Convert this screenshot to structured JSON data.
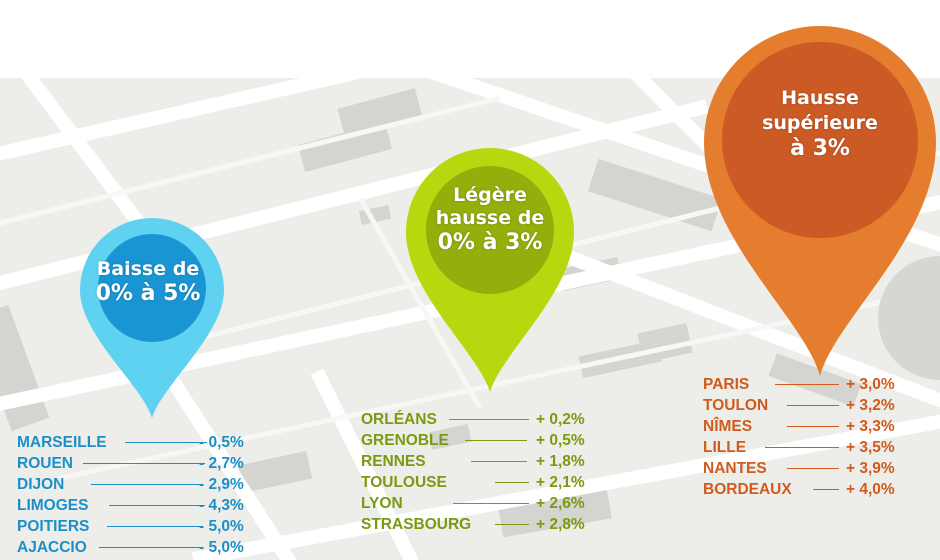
{
  "colors": {
    "blue": "#1d8fc8",
    "blue_pin": "#5fd2f2",
    "blue_core": "#1a95d3",
    "green": "#7a9a12",
    "green_pin": "#b8d70e",
    "green_core": "#94ae0c",
    "orange": "#d15a1c",
    "orange_pin": "#e57d2f",
    "orange_core": "#cc5a24"
  },
  "groups": [
    {
      "title_lines": [
        "Baisse de",
        "0% à 5%"
      ],
      "cities": [
        {
          "name": "MARSEILLE",
          "value": "- 0,5%"
        },
        {
          "name": "ROUEN",
          "value": "- 2,7%"
        },
        {
          "name": "DIJON",
          "value": "- 2,9%"
        },
        {
          "name": "LIMOGES",
          "value": "- 4,3%"
        },
        {
          "name": "POITIERS",
          "value": "- 5,0%"
        },
        {
          "name": "AJACCIO",
          "value": "- 5,0%"
        }
      ]
    },
    {
      "title_lines": [
        "Légère",
        "hausse de",
        "0% à 3%"
      ],
      "cities": [
        {
          "name": "ORLÉANS",
          "value": "+ 0,2%"
        },
        {
          "name": "GRENOBLE",
          "value": "+ 0,5%"
        },
        {
          "name": "RENNES",
          "value": "+ 1,8%"
        },
        {
          "name": "TOULOUSE",
          "value": "+ 2,1%"
        },
        {
          "name": "LYON",
          "value": "+ 2,6%"
        },
        {
          "name": "STRASBOURG",
          "value": "+ 2,8%"
        }
      ]
    },
    {
      "title_lines": [
        "Hausse",
        "supérieure",
        "à 3%"
      ],
      "cities": [
        {
          "name": "PARIS",
          "value": "+ 3,0%"
        },
        {
          "name": "TOULON",
          "value": "+ 3,2%"
        },
        {
          "name": "NÎMES",
          "value": "+ 3,3%"
        },
        {
          "name": "LILLE",
          "value": "+ 3,5%"
        },
        {
          "name": "NANTES",
          "value": "+ 3,9%"
        },
        {
          "name": "BORDEAUX",
          "value": "+ 4,0%"
        }
      ]
    }
  ]
}
